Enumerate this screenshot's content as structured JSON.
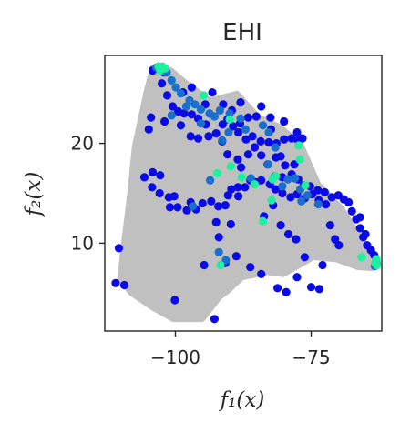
{
  "chart_data": {
    "type": "scatter",
    "title": "EHI",
    "xlabel": "f₁(x)",
    "ylabel": "f₂(x)",
    "xlim": [
      -113,
      -62
    ],
    "ylim": [
      1.2,
      28.8
    ],
    "xticks": [
      -100,
      -75
    ],
    "xtick_labels": [
      "−100",
      "−75"
    ],
    "yticks": [
      10,
      20
    ],
    "ytick_labels": [
      "10",
      "20"
    ],
    "grid": false,
    "colors": {
      "background_cloud": "#c0c0c0",
      "low": "#0a0ae6",
      "mid": "#1a6fcc",
      "high": "#1ff0a0"
    },
    "background_region": [
      [
        -104.6,
        27.8
      ],
      [
        -100.6,
        27.6
      ],
      [
        -97.4,
        26.1
      ],
      [
        -93.5,
        24.6
      ],
      [
        -88.5,
        25.3
      ],
      [
        -84.5,
        22.9
      ],
      [
        -80.5,
        21.9
      ],
      [
        -76.5,
        20.1
      ],
      [
        -73.2,
        16.0
      ],
      [
        -69.2,
        13.8
      ],
      [
        -65.8,
        11.0
      ],
      [
        -63.1,
        8.4
      ],
      [
        -63.6,
        7.2
      ],
      [
        -66.5,
        7.3
      ],
      [
        -70.5,
        8.1
      ],
      [
        -74.5,
        8.3
      ],
      [
        -80.0,
        6.6
      ],
      [
        -83.0,
        6.8
      ],
      [
        -87.5,
        6.3
      ],
      [
        -90.0,
        5.0
      ],
      [
        -91.5,
        4.4
      ],
      [
        -94.5,
        2.3
      ],
      [
        -95.0,
        2.1
      ],
      [
        -100.5,
        2.1
      ],
      [
        -104.5,
        3.3
      ],
      [
        -108.5,
        4.8
      ],
      [
        -110.7,
        6.3
      ],
      [
        -110.2,
        9.1
      ],
      [
        -108.8,
        15.3
      ],
      [
        -108.0,
        19.7
      ],
      [
        -105.8,
        25.3
      ]
    ],
    "series": [
      {
        "points": [
          [
            -111.0,
            6.0
          ],
          [
            -109.4,
            5.8
          ],
          [
            -110.4,
            9.5
          ],
          [
            -104.2,
            27.3
          ],
          [
            -103.3,
            27.5
          ],
          [
            -102.1,
            27.1
          ],
          [
            -101.5,
            24.8
          ],
          [
            -100.5,
            23.7
          ],
          [
            -99.5,
            23.2
          ],
          [
            -98.4,
            23.0
          ],
          [
            -97.0,
            22.9
          ],
          [
            -95.8,
            22.5
          ],
          [
            -94.4,
            21.9
          ],
          [
            -92.5,
            21.0
          ],
          [
            -91.3,
            21.9
          ],
          [
            -90.4,
            22.4
          ],
          [
            -89.4,
            21.7
          ],
          [
            -88.4,
            21.1
          ],
          [
            -87.0,
            20.4
          ],
          [
            -85.8,
            20.7
          ],
          [
            -84.3,
            20.2
          ],
          [
            -82.8,
            20.1
          ],
          [
            -81.4,
            20.0
          ],
          [
            -80.0,
            20.4
          ],
          [
            -78.6,
            20.5
          ],
          [
            -77.4,
            20.3
          ],
          [
            -76.6,
            20.5
          ],
          [
            -104.5,
            22.6
          ],
          [
            -102.0,
            22.2
          ],
          [
            -99.0,
            21.8
          ],
          [
            -97.2,
            20.7
          ],
          [
            -95.8,
            20.5
          ],
          [
            -93.9,
            20.7
          ],
          [
            -91.4,
            20.2
          ],
          [
            -90.4,
            18.9
          ],
          [
            -88.5,
            18.4
          ],
          [
            -87.9,
            17.6
          ],
          [
            -86.6,
            18.9
          ],
          [
            -84.2,
            18.8
          ],
          [
            -83.0,
            17.9
          ],
          [
            -81.5,
            18.6
          ],
          [
            -80.6,
            18.7
          ],
          [
            -79.8,
            17.8
          ],
          [
            -78.6,
            16.9
          ],
          [
            -77.4,
            16.4
          ],
          [
            -76.4,
            15.8
          ],
          [
            -75.2,
            15.7
          ],
          [
            -73.8,
            15.3
          ],
          [
            -72.5,
            15.1
          ],
          [
            -71.2,
            14.6
          ],
          [
            -70.0,
            14.8
          ],
          [
            -69.0,
            14.4
          ],
          [
            -68.1,
            14.1
          ],
          [
            -67.5,
            13.2
          ],
          [
            -66.7,
            12.4
          ],
          [
            -66.0,
            11.5
          ],
          [
            -65.4,
            10.6
          ],
          [
            -64.7,
            9.8
          ],
          [
            -64.0,
            9.3
          ],
          [
            -63.4,
            8.8
          ],
          [
            -63.0,
            8.3
          ],
          [
            -105.7,
            16.6
          ],
          [
            -104.3,
            15.6
          ],
          [
            -102.9,
            15.0
          ],
          [
            -101.2,
            14.6
          ],
          [
            -100.2,
            14.7
          ],
          [
            -104.2,
            17.1
          ],
          [
            -102.8,
            16.8
          ],
          [
            -101.0,
            13.6
          ],
          [
            -99.6,
            13.6
          ],
          [
            -97.9,
            13.3
          ],
          [
            -97.2,
            14.1
          ],
          [
            -96.2,
            13.4
          ],
          [
            -95.0,
            14.0
          ],
          [
            -93.4,
            14.2
          ],
          [
            -92.1,
            13.7
          ],
          [
            -90.8,
            13.8
          ],
          [
            -89.7,
            15.4
          ],
          [
            -88.5,
            15.6
          ],
          [
            -87.2,
            15.6
          ],
          [
            -86.2,
            16.3
          ],
          [
            -85.2,
            16.1
          ],
          [
            -84.2,
            16.3
          ],
          [
            -82.6,
            15.9
          ],
          [
            -81.6,
            15.4
          ],
          [
            -80.3,
            15.0
          ],
          [
            -78.8,
            14.6
          ],
          [
            -77.6,
            14.9
          ],
          [
            -76.2,
            14.5
          ],
          [
            -74.8,
            14.9
          ],
          [
            -73.6,
            14.3
          ],
          [
            -72.3,
            13.9
          ],
          [
            -71.5,
            11.8
          ],
          [
            -70.6,
            10.4
          ],
          [
            -69.9,
            9.8
          ],
          [
            -92.5,
            12.1
          ],
          [
            -90.3,
            14.8
          ],
          [
            -88.4,
            14.7
          ],
          [
            -83.7,
            12.7
          ],
          [
            -82.0,
            13.8
          ],
          [
            -80.6,
            11.8
          ],
          [
            -79.2,
            10.9
          ],
          [
            -77.8,
            10.4
          ],
          [
            -76.2,
            8.6
          ],
          [
            -75.0,
            5.6
          ],
          [
            -73.5,
            5.4
          ],
          [
            -72.9,
            7.8
          ],
          [
            -90.8,
            8.0
          ],
          [
            -88.8,
            8.7
          ],
          [
            -86.2,
            7.6
          ],
          [
            -84.2,
            6.9
          ],
          [
            -81.2,
            5.5
          ],
          [
            -79.6,
            5.1
          ],
          [
            -77.6,
            6.6
          ],
          [
            -92.0,
            10.6
          ],
          [
            -89.8,
            11.9
          ],
          [
            -100.1,
            4.3
          ],
          [
            -92.8,
            2.4
          ],
          [
            -94.7,
            7.8
          ],
          [
            -102.5,
            26.0
          ],
          [
            -97.0,
            25.6
          ],
          [
            -94.5,
            23.9
          ],
          [
            -91.2,
            23.9
          ],
          [
            -88.0,
            24.1
          ],
          [
            -85.1,
            22.7
          ],
          [
            -82.5,
            22.6
          ],
          [
            -80.0,
            22.2
          ],
          [
            -86.6,
            22.6
          ],
          [
            -84.2,
            23.7
          ],
          [
            -89.6,
            23.3
          ],
          [
            -82.4,
            21.4
          ],
          [
            -65.0,
            10.9
          ],
          [
            -104.9,
            21.4
          ],
          [
            -98.6,
            25.1
          ],
          [
            -93.2,
            25.1
          ],
          [
            -88.1,
            22.0
          ],
          [
            -77.6,
            21.1
          ],
          [
            -66.0,
            12.6
          ],
          [
            -85.4,
            19.6
          ],
          [
            -78.1,
            17.9
          ],
          [
            -80.3,
            16.6
          ]
        ]
      },
      {
        "points": [
          [
            -103.5,
            27.6
          ],
          [
            -103.0,
            27.4
          ],
          [
            -102.6,
            27.6
          ],
          [
            -102.2,
            27.2
          ],
          [
            -101.6,
            27.1
          ],
          [
            -100.7,
            26.3
          ],
          [
            -99.9,
            25.6
          ],
          [
            -99.0,
            25.0
          ],
          [
            -97.4,
            24.3
          ],
          [
            -96.4,
            23.9
          ],
          [
            -95.3,
            23.4
          ],
          [
            -93.7,
            23.0
          ],
          [
            -92.8,
            22.7
          ],
          [
            -91.8,
            23.3
          ],
          [
            -90.0,
            23.0
          ],
          [
            -88.0,
            22.5
          ],
          [
            -87.1,
            21.4
          ],
          [
            -83.9,
            21.8
          ],
          [
            -82.8,
            21.1
          ],
          [
            -82.9,
            17.9
          ],
          [
            -81.7,
            16.7
          ],
          [
            -79.3,
            16.4
          ],
          [
            -78.0,
            16.5
          ],
          [
            -77.0,
            15.4
          ],
          [
            -76.8,
            14.2
          ],
          [
            -75.7,
            14.8
          ],
          [
            -73.7,
            13.9
          ],
          [
            -91.4,
            20.3
          ],
          [
            -92.0,
            9.1
          ],
          [
            -90.7,
            8.3
          ],
          [
            -86.1,
            16.5
          ],
          [
            -90.2,
            21.1
          ],
          [
            -81.6,
            19.6
          ],
          [
            -95.3,
            22.0
          ],
          [
            -98.0,
            23.7
          ],
          [
            -100.7,
            22.8
          ],
          [
            -93.6,
            16.3
          ],
          [
            -80.3,
            15.7
          ],
          [
            -96.8,
            13.7
          ],
          [
            -63.1,
            8.1
          ],
          [
            -62.9,
            7.9
          ],
          [
            -63.3,
            7.7
          ]
        ]
      },
      {
        "points": [
          [
            -103.1,
            27.7
          ],
          [
            -102.4,
            27.7
          ],
          [
            -101.9,
            27.5
          ],
          [
            -102.8,
            27.3
          ],
          [
            -92.3,
            17.0
          ],
          [
            -89.8,
            17.7
          ],
          [
            -90.0,
            22.4
          ],
          [
            -82.1,
            16.4
          ],
          [
            -77.1,
            18.4
          ],
          [
            -77.3,
            19.8
          ],
          [
            -94.8,
            24.8
          ],
          [
            -83.9,
            12.2
          ],
          [
            -85.4,
            15.9
          ],
          [
            -82.3,
            14.3
          ],
          [
            -87.8,
            16.6
          ],
          [
            -91.7,
            7.8
          ],
          [
            -81.5,
            16.7
          ],
          [
            -76.1,
            15.8
          ],
          [
            -65.7,
            8.6
          ],
          [
            -63.0,
            8.4
          ],
          [
            -63.2,
            8.0
          ],
          [
            -62.9,
            7.8
          ]
        ]
      }
    ]
  }
}
